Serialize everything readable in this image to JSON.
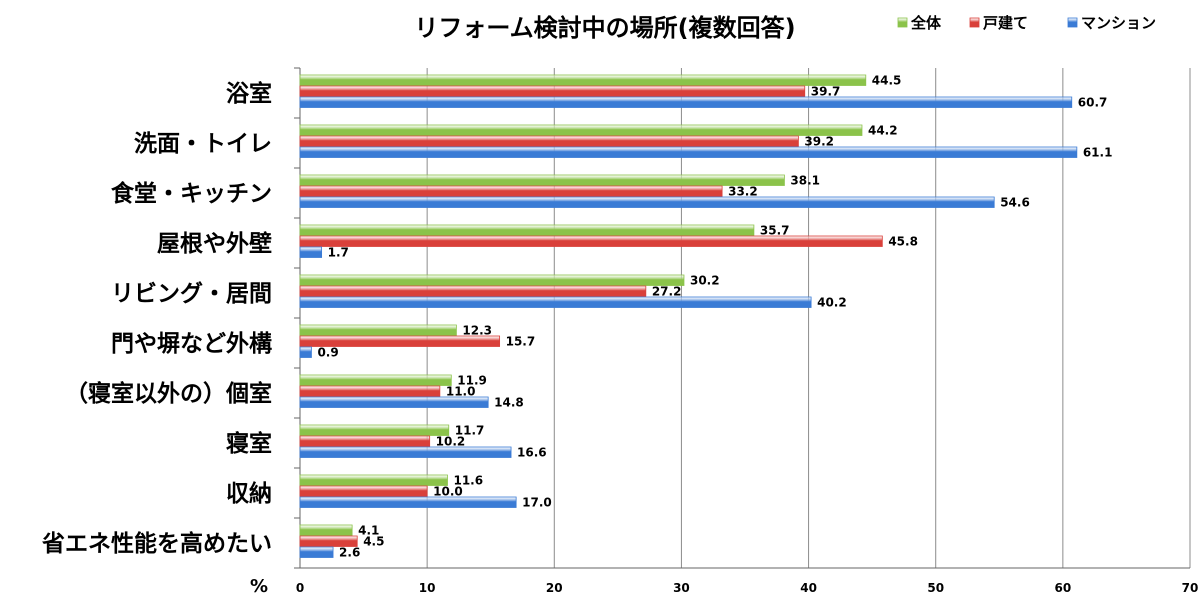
{
  "chart_data": {
    "type": "bar",
    "orientation": "horizontal",
    "title": "リフォーム検討中の場所(複数回答)",
    "unit_label": "%",
    "categories": [
      "浴室",
      "洗面・トイレ",
      "食堂・キッチン",
      "屋根や外壁",
      "リビング・居間",
      "門や塀など外構",
      "（寝室以外の）個室",
      "寝室",
      "収納",
      "省エネ性能を高めたい"
    ],
    "series": [
      {
        "name": "全体",
        "color": "#8bc34a",
        "values": [
          44.5,
          44.2,
          38.1,
          35.7,
          30.2,
          12.3,
          11.9,
          11.7,
          11.6,
          4.1
        ]
      },
      {
        "name": "戸建て",
        "color": "#d9403a",
        "values": [
          39.7,
          39.2,
          33.2,
          45.8,
          27.2,
          15.7,
          11.0,
          10.2,
          10.0,
          4.5
        ]
      },
      {
        "name": "マンション",
        "color": "#3a7bd5",
        "values": [
          60.7,
          61.1,
          54.6,
          1.7,
          40.2,
          0.9,
          14.8,
          16.6,
          17.0,
          2.6
        ]
      }
    ],
    "value_labels": [
      [
        "44.5",
        "44.2",
        "38.1",
        "35.7",
        "30.2",
        "12.3",
        "11.9",
        "11.7",
        "11.6",
        "4.1"
      ],
      [
        "39.7",
        "39.2",
        "33.2",
        "45.8",
        "27.2",
        "15.7",
        "11.0",
        "10.2",
        "10.0",
        "4.5"
      ],
      [
        "60.7",
        "61.1",
        "54.6",
        "1.7",
        "40.2",
        "0.9",
        "14.8",
        "16.6",
        "17.0",
        "2.6"
      ]
    ],
    "xlim": [
      0,
      70
    ],
    "xticks": [
      "0",
      "10",
      "20",
      "30",
      "40",
      "50",
      "60",
      "70"
    ],
    "grid": true,
    "legend_position": "top-right"
  }
}
